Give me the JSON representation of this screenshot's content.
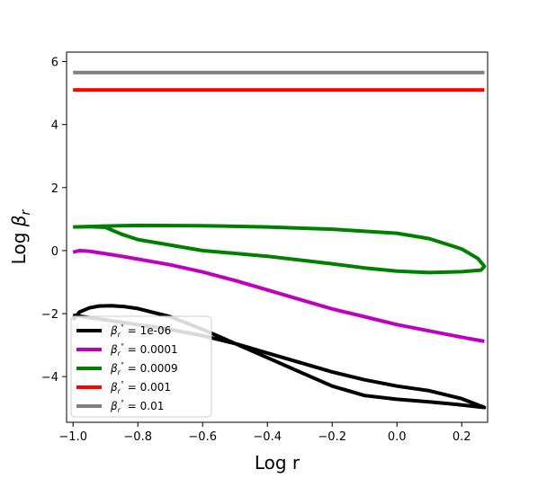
{
  "chart_data": {
    "type": "line",
    "xlabel": "Log r",
    "ylabel_prefix": "Log ",
    "ylabel_symbol": "β",
    "ylabel_sub": "r",
    "xlim": [
      -1.02,
      0.28
    ],
    "ylim": [
      -5.45,
      6.3
    ],
    "xticks": [
      -1.0,
      -0.8,
      -0.6,
      -0.4,
      -0.2,
      0.0,
      0.2
    ],
    "xtick_labels": [
      "−1.0",
      "−0.8",
      "−0.6",
      "−0.4",
      "−0.2",
      "0.0",
      "0.2"
    ],
    "yticks": [
      -4,
      -2,
      0,
      2,
      4,
      6
    ],
    "ytick_labels": [
      "−4",
      "−2",
      "0",
      "2",
      "4",
      "6"
    ],
    "grid": false,
    "legend_position": "bottom-left",
    "legend_prefix_symbol": "β",
    "legend_prefix_sub": "r",
    "legend_prefix_sup": "°",
    "series": [
      {
        "name": "1e-06",
        "color": "#000000",
        "x": [
          -1.0,
          -0.98,
          -0.95,
          -0.92,
          -0.88,
          -0.84,
          -0.8,
          -0.7,
          -0.6,
          -0.5,
          -0.4,
          -0.3,
          -0.2,
          -0.1,
          0.0,
          0.1,
          0.2,
          0.27,
          0.2,
          0.1,
          0.0,
          -0.1,
          -0.2,
          -0.3,
          -0.4,
          -0.5,
          -0.6,
          -0.7,
          -0.8,
          -0.9,
          -1.0
        ],
        "y": [
          -2.2,
          -1.95,
          -1.82,
          -1.76,
          -1.75,
          -1.78,
          -1.84,
          -2.1,
          -2.5,
          -2.95,
          -3.4,
          -3.85,
          -4.3,
          -4.6,
          -4.72,
          -4.8,
          -4.9,
          -4.98,
          -4.7,
          -4.45,
          -4.3,
          -4.1,
          -3.85,
          -3.55,
          -3.25,
          -2.95,
          -2.7,
          -2.5,
          -2.35,
          -2.2,
          -2.05
        ]
      },
      {
        "name": "0.0001",
        "color": "#bf00bf",
        "x": [
          -1.0,
          -0.98,
          -0.95,
          -0.9,
          -0.85,
          -0.8,
          -0.7,
          -0.6,
          -0.5,
          -0.4,
          -0.3,
          -0.2,
          -0.1,
          0.0,
          0.1,
          0.2,
          0.27
        ],
        "y": [
          -0.05,
          0.0,
          -0.02,
          -0.1,
          -0.18,
          -0.27,
          -0.45,
          -0.68,
          -0.95,
          -1.25,
          -1.55,
          -1.85,
          -2.1,
          -2.35,
          -2.55,
          -2.75,
          -2.88
        ]
      },
      {
        "name": "0.0009",
        "color": "#008000",
        "x": [
          -1.0,
          -0.9,
          -0.8,
          -0.6,
          -0.4,
          -0.2,
          0.0,
          0.1,
          0.2,
          0.25,
          0.27,
          0.26,
          0.2,
          0.1,
          0.0,
          -0.1,
          -0.2,
          -0.4,
          -0.6,
          -0.8,
          -0.85,
          -0.88,
          -0.9,
          -0.95,
          -1.0
        ],
        "y": [
          0.75,
          0.78,
          0.8,
          0.79,
          0.75,
          0.68,
          0.55,
          0.38,
          0.05,
          -0.25,
          -0.5,
          -0.62,
          -0.67,
          -0.7,
          -0.65,
          -0.55,
          -0.42,
          -0.18,
          0.0,
          0.35,
          0.52,
          0.65,
          0.74,
          0.76,
          0.75
        ]
      },
      {
        "name": "0.001",
        "color": "#ff0000",
        "x": [
          -1.0,
          0.27
        ],
        "y": [
          5.1,
          5.1
        ]
      },
      {
        "name": "0.01",
        "color": "#808080",
        "x": [
          -1.0,
          0.27
        ],
        "y": [
          5.65,
          5.65
        ]
      }
    ]
  }
}
